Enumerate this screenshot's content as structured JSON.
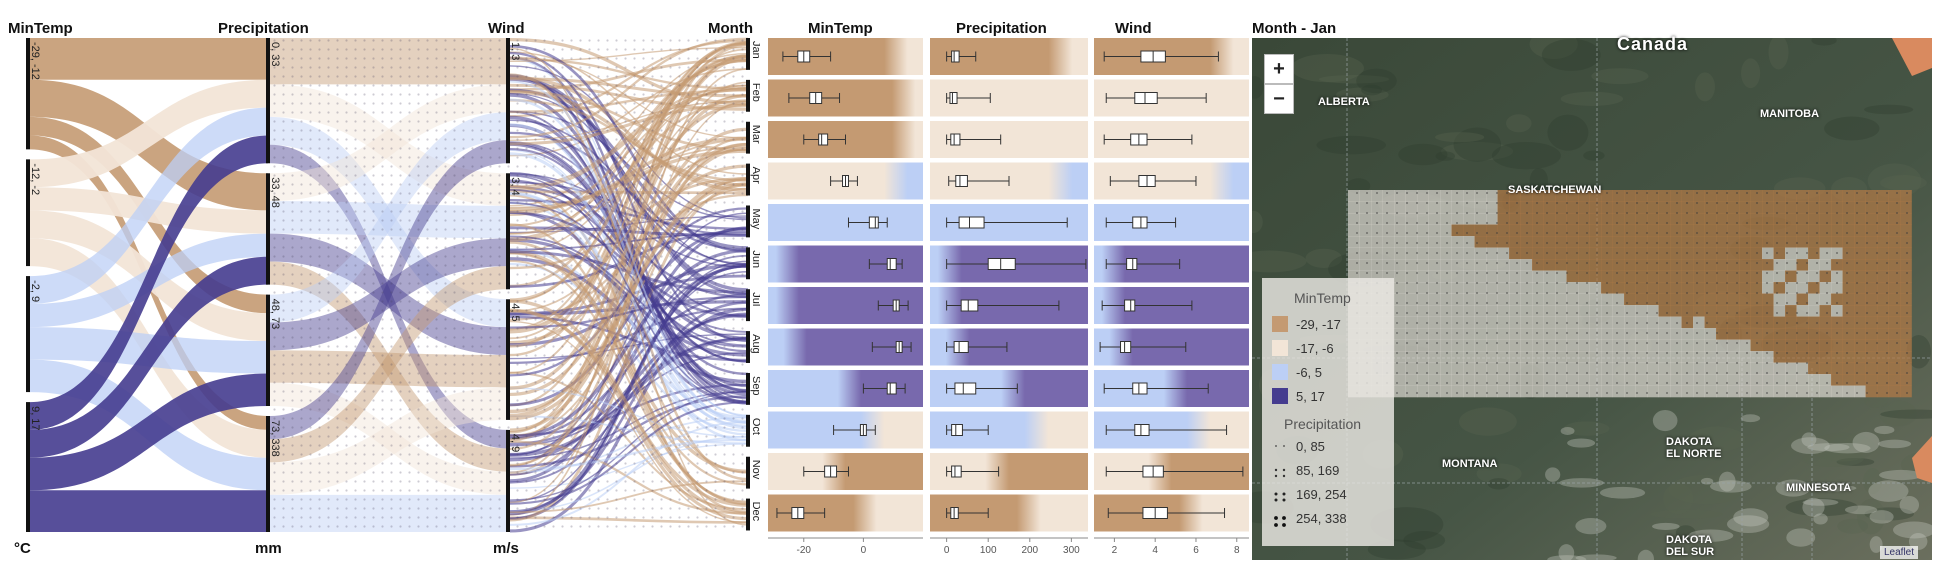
{
  "colors": {
    "c1": "#c49a72",
    "c2": "#f2e5d7",
    "c3": "#bccff5",
    "c4": "#7869ad",
    "c4_dark": "#453c8f",
    "map_land": "#3e4c3c",
    "overlay_brown": "#b37a46",
    "overlay_grey": "#d9d5cf",
    "legend_bg": "#ece9e4"
  },
  "parallel_sets": {
    "axes": [
      {
        "title": "MinTemp",
        "unit": "°C",
        "categories": [
          "-29, -12",
          "-12, -2",
          "-2, 9",
          "9, 17"
        ]
      },
      {
        "title": "Precipitation",
        "unit": "mm",
        "categories": [
          "0, 33",
          "33, 48",
          "48, 73",
          "73, 338"
        ]
      },
      {
        "title": "Wind",
        "unit": "m/s",
        "categories": [
          "1, 3",
          "3, 4",
          "4, 5",
          "4, 9"
        ]
      },
      {
        "title": "Month",
        "unit": "",
        "categories": [
          "Jan",
          "Feb",
          "Mar",
          "Apr",
          "May",
          "Jun",
          "Jul",
          "Aug",
          "Sep",
          "Oct",
          "Nov",
          "Dec"
        ]
      }
    ]
  },
  "chart_data": [
    {
      "type": "parallel-sets",
      "axes": [
        "MinTemp",
        "Precipitation",
        "Wind",
        "Month"
      ],
      "units": {
        "MinTemp": "°C",
        "Precipitation": "mm",
        "Wind": "m/s"
      },
      "category_fractions": {
        "MinTemp": [
          0.24,
          0.23,
          0.25,
          0.28
        ],
        "Precipitation": [
          0.27,
          0.24,
          0.24,
          0.25
        ],
        "Wind": [
          0.27,
          0.25,
          0.26,
          0.22
        ],
        "Month": [
          0.083,
          0.083,
          0.083,
          0.083,
          0.083,
          0.083,
          0.083,
          0.083,
          0.083,
          0.083,
          0.083,
          0.083
        ]
      },
      "flows_mintemp_to_precip": [
        {
          "from": 0,
          "to": 0,
          "frac": 0.09
        },
        {
          "from": 0,
          "to": 1,
          "frac": 0.08
        },
        {
          "from": 0,
          "to": 2,
          "frac": 0.04
        },
        {
          "from": 0,
          "to": 3,
          "frac": 0.03
        },
        {
          "from": 1,
          "to": 0,
          "frac": 0.06
        },
        {
          "from": 1,
          "to": 1,
          "frac": 0.05
        },
        {
          "from": 1,
          "to": 2,
          "frac": 0.06
        },
        {
          "from": 1,
          "to": 3,
          "frac": 0.06
        },
        {
          "from": 2,
          "to": 0,
          "frac": 0.06
        },
        {
          "from": 2,
          "to": 1,
          "frac": 0.05
        },
        {
          "from": 2,
          "to": 2,
          "frac": 0.07
        },
        {
          "from": 2,
          "to": 3,
          "frac": 0.07
        },
        {
          "from": 3,
          "to": 0,
          "frac": 0.06
        },
        {
          "from": 3,
          "to": 1,
          "frac": 0.06
        },
        {
          "from": 3,
          "to": 2,
          "frac": 0.07
        },
        {
          "from": 3,
          "to": 3,
          "frac": 0.09
        }
      ],
      "flows_precip_to_wind": [
        {
          "from": 0,
          "to": 0,
          "frac": 0.1
        },
        {
          "from": 0,
          "to": 1,
          "frac": 0.07
        },
        {
          "from": 0,
          "to": 2,
          "frac": 0.06
        },
        {
          "from": 0,
          "to": 3,
          "frac": 0.04
        },
        {
          "from": 1,
          "to": 0,
          "frac": 0.06
        },
        {
          "from": 1,
          "to": 1,
          "frac": 0.07
        },
        {
          "from": 1,
          "to": 2,
          "frac": 0.06
        },
        {
          "from": 1,
          "to": 3,
          "frac": 0.05
        },
        {
          "from": 2,
          "to": 0,
          "frac": 0.06
        },
        {
          "from": 2,
          "to": 1,
          "frac": 0.06
        },
        {
          "from": 2,
          "to": 2,
          "frac": 0.07
        },
        {
          "from": 2,
          "to": 3,
          "frac": 0.05
        },
        {
          "from": 3,
          "to": 0,
          "frac": 0.05
        },
        {
          "from": 3,
          "to": 1,
          "frac": 0.05
        },
        {
          "from": 3,
          "to": 2,
          "frac": 0.07
        },
        {
          "from": 3,
          "to": 3,
          "frac": 0.08
        }
      ]
    },
    {
      "type": "boxplot",
      "title": "MinTemp",
      "categories": [
        "Jan",
        "Feb",
        "Mar",
        "Apr",
        "May",
        "Jun",
        "Jul",
        "Aug",
        "Sep",
        "Oct",
        "Nov",
        "Dec"
      ],
      "xlim": [
        -32,
        20
      ],
      "ticks": [
        -20,
        0
      ],
      "row_class": [
        0,
        0,
        0,
        1,
        2,
        3,
        3,
        3,
        3,
        2,
        1,
        0
      ],
      "gradient_class": [
        1,
        1,
        1,
        2,
        2,
        2,
        2,
        2,
        2,
        1,
        0,
        1
      ],
      "gradient_start": [
        0.75,
        0.8,
        0.8,
        0.75,
        0.25,
        0.2,
        0.2,
        0.25,
        0.6,
        0.6,
        0.35,
        0.55
      ],
      "boxes": [
        {
          "min": -27,
          "q1": -22,
          "median": -20,
          "q3": -18,
          "max": -11
        },
        {
          "min": -25,
          "q1": -18,
          "median": -16,
          "q3": -14,
          "max": -8
        },
        {
          "min": -20,
          "q1": -15,
          "median": -14,
          "q3": -12,
          "max": -6
        },
        {
          "min": -11,
          "q1": -7,
          "median": -6,
          "q3": -5,
          "max": -2
        },
        {
          "min": -5,
          "q1": 2,
          "median": 4,
          "q3": 5,
          "max": 8
        },
        {
          "min": 2,
          "q1": 8,
          "median": 9,
          "q3": 11,
          "max": 13
        },
        {
          "min": 5,
          "q1": 10,
          "median": 11,
          "q3": 12,
          "max": 15
        },
        {
          "min": 3,
          "q1": 11,
          "median": 12,
          "q3": 13,
          "max": 16
        },
        {
          "min": 0,
          "q1": 8,
          "median": 9,
          "q3": 11,
          "max": 14
        },
        {
          "min": -10,
          "q1": -1,
          "median": 0,
          "q3": 1,
          "max": 4
        },
        {
          "min": -20,
          "q1": -13,
          "median": -11,
          "q3": -9,
          "max": -5
        },
        {
          "min": -29,
          "q1": -24,
          "median": -22,
          "q3": -20,
          "max": -13
        }
      ]
    },
    {
      "type": "boxplot",
      "title": "Precipitation",
      "categories": [
        "Jan",
        "Feb",
        "Mar",
        "Apr",
        "May",
        "Jun",
        "Jul",
        "Aug",
        "Sep",
        "Oct",
        "Nov",
        "Dec"
      ],
      "xlim": [
        -40,
        340
      ],
      "ticks": [
        0,
        100,
        200,
        300
      ],
      "row_class": [
        0,
        1,
        1,
        1,
        2,
        3,
        3,
        3,
        3,
        2,
        1,
        0
      ],
      "gradient_class": [
        1,
        1,
        1,
        2,
        2,
        2,
        2,
        2,
        2,
        1,
        0,
        1
      ],
      "gradient_start": [
        0.75,
        0.8,
        0.8,
        0.75,
        0.25,
        0.2,
        0.2,
        0.25,
        0.6,
        0.6,
        0.35,
        0.55
      ],
      "boxes": [
        {
          "min": 0,
          "q1": 12,
          "median": 18,
          "q3": 30,
          "max": 70
        },
        {
          "min": 0,
          "q1": 8,
          "median": 14,
          "q3": 25,
          "max": 105
        },
        {
          "min": 0,
          "q1": 10,
          "median": 18,
          "q3": 32,
          "max": 130
        },
        {
          "min": 5,
          "q1": 22,
          "median": 32,
          "q3": 50,
          "max": 150
        },
        {
          "min": 0,
          "q1": 30,
          "median": 55,
          "q3": 90,
          "max": 290
        },
        {
          "min": 0,
          "q1": 100,
          "median": 130,
          "q3": 165,
          "max": 335
        },
        {
          "min": 0,
          "q1": 35,
          "median": 52,
          "q3": 75,
          "max": 270
        },
        {
          "min": 0,
          "q1": 18,
          "median": 30,
          "q3": 52,
          "max": 145
        },
        {
          "min": 0,
          "q1": 20,
          "median": 40,
          "q3": 70,
          "max": 170
        },
        {
          "min": 0,
          "q1": 12,
          "median": 22,
          "q3": 38,
          "max": 100
        },
        {
          "min": 0,
          "q1": 12,
          "median": 20,
          "q3": 35,
          "max": 125
        },
        {
          "min": 0,
          "q1": 10,
          "median": 18,
          "q3": 28,
          "max": 100
        }
      ]
    },
    {
      "type": "boxplot",
      "title": "Wind",
      "categories": [
        "Jan",
        "Feb",
        "Mar",
        "Apr",
        "May",
        "Jun",
        "Jul",
        "Aug",
        "Sep",
        "Oct",
        "Nov",
        "Dec"
      ],
      "xlim": [
        1,
        8.6
      ],
      "ticks": [
        2,
        4,
        6,
        8
      ],
      "row_class": [
        0,
        1,
        1,
        1,
        2,
        3,
        3,
        3,
        3,
        2,
        1,
        0
      ],
      "gradient_class": [
        1,
        1,
        1,
        2,
        2,
        2,
        2,
        2,
        2,
        1,
        0,
        1
      ],
      "gradient_start": [
        0.75,
        0.8,
        0.8,
        0.75,
        0.25,
        0.2,
        0.2,
        0.25,
        0.6,
        0.6,
        0.35,
        0.55
      ],
      "boxes": [
        {
          "min": 1.5,
          "q1": 3.3,
          "median": 3.9,
          "q3": 4.5,
          "max": 7.1
        },
        {
          "min": 1.6,
          "q1": 3.0,
          "median": 3.5,
          "q3": 4.1,
          "max": 6.5
        },
        {
          "min": 1.5,
          "q1": 2.8,
          "median": 3.2,
          "q3": 3.6,
          "max": 5.8
        },
        {
          "min": 1.8,
          "q1": 3.2,
          "median": 3.6,
          "q3": 4.0,
          "max": 6.0
        },
        {
          "min": 1.6,
          "q1": 2.9,
          "median": 3.3,
          "q3": 3.6,
          "max": 5.0
        },
        {
          "min": 1.6,
          "q1": 2.6,
          "median": 2.9,
          "q3": 3.1,
          "max": 5.2
        },
        {
          "min": 1.4,
          "q1": 2.5,
          "median": 2.8,
          "q3": 3.0,
          "max": 5.8
        },
        {
          "min": 1.3,
          "q1": 2.3,
          "median": 2.5,
          "q3": 2.8,
          "max": 5.5
        },
        {
          "min": 1.5,
          "q1": 2.9,
          "median": 3.2,
          "q3": 3.6,
          "max": 6.6
        },
        {
          "min": 1.6,
          "q1": 3.0,
          "median": 3.3,
          "q3": 3.7,
          "max": 7.5
        },
        {
          "min": 1.6,
          "q1": 3.4,
          "median": 3.9,
          "q3": 4.4,
          "max": 8.3
        },
        {
          "min": 1.7,
          "q1": 3.4,
          "median": 4.0,
          "q3": 4.6,
          "max": 7.4
        }
      ]
    }
  ],
  "map": {
    "title": "Month - Jan",
    "zoom_in_label": "+",
    "zoom_out_label": "−",
    "labels": {
      "canada": "Canada",
      "alberta": "ALBERTA",
      "manitoba": "MANITOBA",
      "saskatchewan": "SASKATCHEWAN",
      "montana": "MONTANA",
      "minnesota": "MINNESOTA",
      "north_dakota_1": "DAKOTA",
      "north_dakota_2": "EL NORTE",
      "south_dakota_1": "DAKOTA",
      "south_dakota_2": "DEL SUR"
    },
    "attribution": "Leaflet",
    "legend": {
      "mintemp_title": "MinTemp",
      "mintemp_items": [
        "-29, -17",
        "-17, -6",
        "-6, 5",
        "5, 17"
      ],
      "precip_title": "Precipitation",
      "precip_items": [
        "0, 85",
        "85, 169",
        "169, 254",
        "254, 338"
      ]
    }
  }
}
